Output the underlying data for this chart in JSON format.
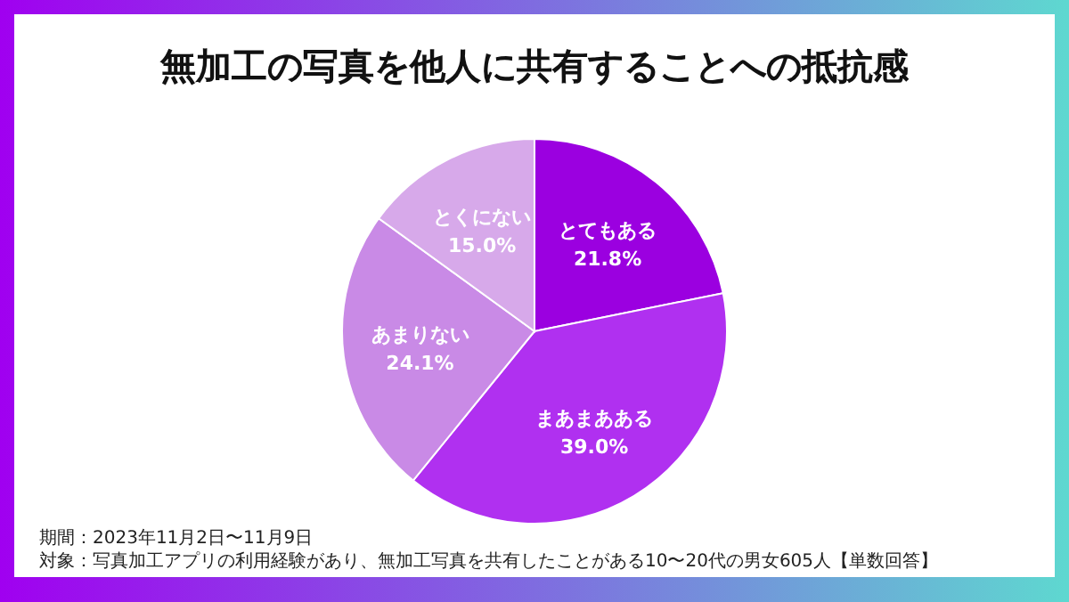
{
  "chart_data": {
    "type": "pie",
    "title": "無加工の写真を他人に共有することへの抵抗感",
    "categories": [
      "とてもある",
      "まあまあある",
      "あまりない",
      "とくにない"
    ],
    "values": [
      21.8,
      39.0,
      24.1,
      15.0
    ],
    "value_labels": [
      "21.8%",
      "39.0%",
      "24.1%",
      "15.0%"
    ],
    "colors": [
      "#9b00e0",
      "#b030f0",
      "#c98ae6",
      "#d7a9ea"
    ],
    "legend": false,
    "annotations": [
      "期間：2023年11月2日〜11月9日",
      "対象：写真加工アプリの利用経験があり、無加工写真を共有したことがある10〜20代の男女605人【単数回答】"
    ]
  }
}
